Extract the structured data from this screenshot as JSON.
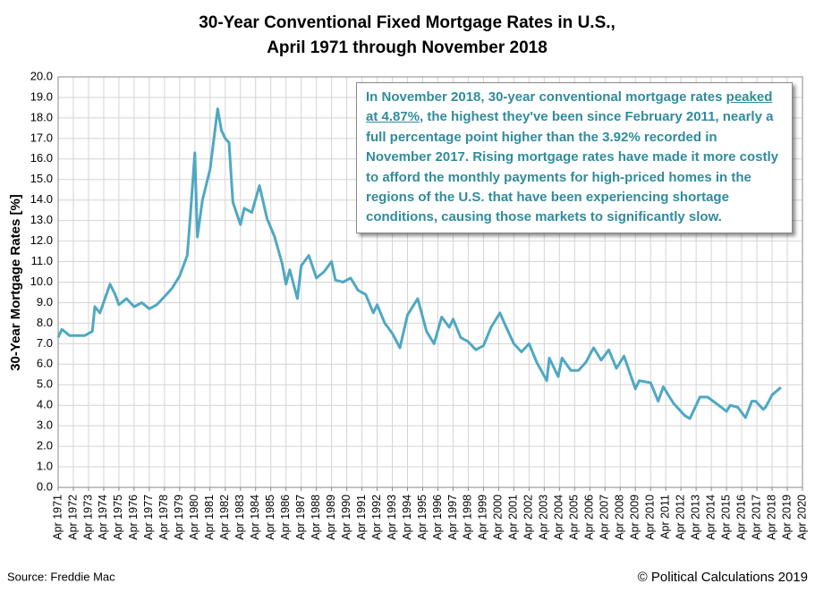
{
  "chart_data": {
    "type": "line",
    "title": [
      "30-Year Conventional Fixed Mortgage Rates in U.S.,",
      "April 1971 through November 2018"
    ],
    "y_label": "30-Year Mortgage Rates [%]",
    "source": "Source: Freddie Mac",
    "credit": "© Political Calculations 2019",
    "annotation": [
      "In November 2018, 30-year conventional mortgage rates ",
      "peaked at 4.87%",
      ", the highest they've been since February 2011, nearly a full percentage point higher than the 3.92% recorded in November 2017.  Rising mortgage rates have made it more costly to afford the monthly payments for high-priced homes in the regions of the U.S. that have been experiencing shortage conditions, causing those markets to significantly slow."
    ],
    "color": "#4fa8c2",
    "grid": true,
    "x": [
      "1971-04",
      "1971-07",
      "1972-01",
      "1973-01",
      "1973-07",
      "1973-09",
      "1974-01",
      "1974-09",
      "1975-01",
      "1975-04",
      "1975-10",
      "1976-04",
      "1976-10",
      "1977-04",
      "1977-10",
      "1978-04",
      "1978-10",
      "1979-04",
      "1979-10",
      "1979-12",
      "1980-04",
      "1980-06",
      "1980-10",
      "1981-04",
      "1981-10",
      "1982-01",
      "1982-04",
      "1982-07",
      "1982-10",
      "1983-04",
      "1983-07",
      "1984-01",
      "1984-07",
      "1985-01",
      "1985-07",
      "1986-01",
      "1986-04",
      "1986-07",
      "1987-01",
      "1987-04",
      "1987-10",
      "1988-04",
      "1988-10",
      "1989-04",
      "1989-07",
      "1990-01",
      "1990-07",
      "1991-01",
      "1991-07",
      "1992-01",
      "1992-04",
      "1992-10",
      "1993-04",
      "1993-10",
      "1994-04",
      "1994-12",
      "1995-07",
      "1996-01",
      "1996-07",
      "1997-01",
      "1997-04",
      "1997-10",
      "1998-04",
      "1998-10",
      "1999-04",
      "1999-10",
      "2000-05",
      "2000-10",
      "2001-04",
      "2001-10",
      "2002-04",
      "2002-10",
      "2003-06",
      "2003-08",
      "2004-03",
      "2004-06",
      "2005-01",
      "2005-07",
      "2006-01",
      "2006-07",
      "2007-01",
      "2007-07",
      "2008-01",
      "2008-07",
      "2009-04",
      "2009-07",
      "2010-04",
      "2010-10",
      "2011-02",
      "2011-10",
      "2012-07",
      "2012-11",
      "2013-07",
      "2014-01",
      "2014-12",
      "2015-04",
      "2015-07",
      "2016-01",
      "2016-07",
      "2016-12",
      "2017-03",
      "2017-09",
      "2017-11",
      "2018-04",
      "2018-11"
    ],
    "values": [
      7.31,
      7.7,
      7.4,
      7.4,
      7.6,
      8.8,
      8.5,
      9.9,
      9.4,
      8.9,
      9.2,
      8.8,
      9.0,
      8.7,
      8.9,
      9.3,
      9.7,
      10.3,
      11.3,
      12.9,
      16.3,
      12.2,
      14.0,
      15.5,
      18.45,
      17.4,
      17.0,
      16.8,
      13.9,
      12.8,
      13.6,
      13.4,
      14.7,
      13.1,
      12.2,
      10.9,
      9.9,
      10.6,
      9.2,
      10.8,
      11.3,
      10.2,
      10.5,
      11.0,
      10.1,
      10.0,
      10.2,
      9.6,
      9.4,
      8.5,
      8.9,
      8.0,
      7.5,
      6.8,
      8.4,
      9.2,
      7.6,
      7.0,
      8.3,
      7.8,
      8.2,
      7.3,
      7.1,
      6.7,
      6.9,
      7.8,
      8.5,
      7.8,
      7.0,
      6.6,
      7.0,
      6.1,
      5.2,
      6.3,
      5.4,
      6.3,
      5.7,
      5.7,
      6.1,
      6.8,
      6.2,
      6.7,
      5.8,
      6.4,
      4.8,
      5.2,
      5.1,
      4.2,
      4.9,
      4.1,
      3.5,
      3.35,
      4.4,
      4.4,
      3.9,
      3.7,
      4.0,
      3.9,
      3.4,
      4.2,
      4.2,
      3.8,
      3.92,
      4.5,
      4.87
    ],
    "xlim": [
      "1971-04",
      "2020-04"
    ],
    "xticks": [
      {
        "value": "1971-04",
        "label": "Apr 1971"
      },
      {
        "value": "1972-04",
        "label": "Apr 1972"
      },
      {
        "value": "1973-04",
        "label": "Apr 1973"
      },
      {
        "value": "1974-04",
        "label": "Apr 1974"
      },
      {
        "value": "1975-04",
        "label": "Apr 1975"
      },
      {
        "value": "1976-04",
        "label": "Apr 1976"
      },
      {
        "value": "1977-04",
        "label": "Apr 1977"
      },
      {
        "value": "1978-04",
        "label": "Apr 1978"
      },
      {
        "value": "1979-04",
        "label": "Apr 1979"
      },
      {
        "value": "1980-04",
        "label": "Apr 1980"
      },
      {
        "value": "1981-04",
        "label": "Apr 1981"
      },
      {
        "value": "1982-04",
        "label": "Apr 1982"
      },
      {
        "value": "1983-04",
        "label": "Apr 1983"
      },
      {
        "value": "1984-04",
        "label": "Apr 1984"
      },
      {
        "value": "1985-04",
        "label": "Apr 1985"
      },
      {
        "value": "1986-04",
        "label": "Apr 1986"
      },
      {
        "value": "1987-04",
        "label": "Apr 1987"
      },
      {
        "value": "1988-04",
        "label": "Apr 1988"
      },
      {
        "value": "1989-04",
        "label": "Apr 1989"
      },
      {
        "value": "1990-04",
        "label": "Apr 1990"
      },
      {
        "value": "1991-04",
        "label": "Apr 1991"
      },
      {
        "value": "1992-04",
        "label": "Apr 1992"
      },
      {
        "value": "1993-04",
        "label": "Apr 1993"
      },
      {
        "value": "1994-04",
        "label": "Apr 1994"
      },
      {
        "value": "1995-04",
        "label": "Apr 1995"
      },
      {
        "value": "1996-04",
        "label": "Apr 1996"
      },
      {
        "value": "1997-04",
        "label": "Apr 1997"
      },
      {
        "value": "1998-04",
        "label": "Apr 1998"
      },
      {
        "value": "1999-04",
        "label": "Apr 1999"
      },
      {
        "value": "2000-04",
        "label": "Apr 2000"
      },
      {
        "value": "2001-04",
        "label": "Apr 2001"
      },
      {
        "value": "2002-04",
        "label": "Apr 2002"
      },
      {
        "value": "2003-04",
        "label": "Apr 2003"
      },
      {
        "value": "2004-04",
        "label": "Apr 2004"
      },
      {
        "value": "2005-04",
        "label": "Apr 2005"
      },
      {
        "value": "2006-04",
        "label": "Apr 2006"
      },
      {
        "value": "2007-04",
        "label": "Apr 2007"
      },
      {
        "value": "2008-04",
        "label": "Apr 2008"
      },
      {
        "value": "2009-04",
        "label": "Apr 2009"
      },
      {
        "value": "2010-04",
        "label": "Apr 2010"
      },
      {
        "value": "2011-04",
        "label": "Apr 2011"
      },
      {
        "value": "2012-04",
        "label": "Apr 2012"
      },
      {
        "value": "2013-04",
        "label": "Apr 2013"
      },
      {
        "value": "2014-04",
        "label": "Apr 2014"
      },
      {
        "value": "2015-04",
        "label": "Apr 2015"
      },
      {
        "value": "2016-04",
        "label": "Apr 2016"
      },
      {
        "value": "2017-04",
        "label": "Apr 2017"
      },
      {
        "value": "2018-04",
        "label": "Apr 2018"
      },
      {
        "value": "2019-04",
        "label": "Apr 2019"
      },
      {
        "value": "2020-04",
        "label": "Apr 2020"
      }
    ],
    "ylim": [
      0,
      20
    ],
    "yticks": [
      {
        "value": 0,
        "label": "0.0"
      },
      {
        "value": 1,
        "label": "1.0"
      },
      {
        "value": 2,
        "label": "2.0"
      },
      {
        "value": 3,
        "label": "3.0"
      },
      {
        "value": 4,
        "label": "4.0"
      },
      {
        "value": 5,
        "label": "5.0"
      },
      {
        "value": 6,
        "label": "6.0"
      },
      {
        "value": 7,
        "label": "7.0"
      },
      {
        "value": 8,
        "label": "8.0"
      },
      {
        "value": 9,
        "label": "9.0"
      },
      {
        "value": 10,
        "label": "10.0"
      },
      {
        "value": 11,
        "label": "11.0"
      },
      {
        "value": 12,
        "label": "12.0"
      },
      {
        "value": 13,
        "label": "13.0"
      },
      {
        "value": 14,
        "label": "14.0"
      },
      {
        "value": 15,
        "label": "15.0"
      },
      {
        "value": 16,
        "label": "16.0"
      },
      {
        "value": 17,
        "label": "17.0"
      },
      {
        "value": 18,
        "label": "18.0"
      },
      {
        "value": 19,
        "label": "19.0"
      },
      {
        "value": 20,
        "label": "20.0"
      }
    ]
  }
}
